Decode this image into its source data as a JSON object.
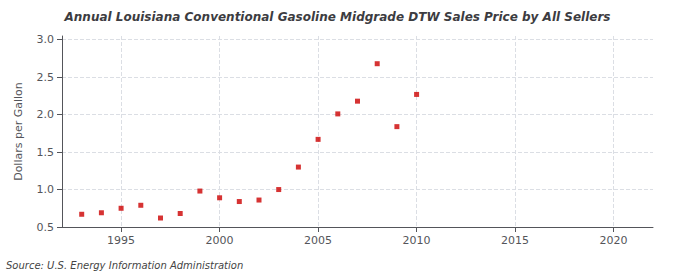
{
  "chart_data": {
    "type": "scatter",
    "title": "Annual Louisiana Conventional Gasoline Midgrade DTW Sales Price by All Sellers",
    "ylabel": "Dollars per Gallon",
    "source": "Source: U.S. Energy Information Administration",
    "x": [
      1993,
      1994,
      1995,
      1996,
      1997,
      1998,
      1999,
      2000,
      2001,
      2002,
      2003,
      2004,
      2005,
      2006,
      2007,
      2008,
      2009,
      2010
    ],
    "values": [
      0.67,
      0.69,
      0.75,
      0.79,
      0.62,
      0.68,
      0.98,
      0.89,
      0.84,
      0.86,
      1.0,
      1.3,
      1.67,
      2.01,
      2.18,
      2.68,
      1.84,
      2.27
    ],
    "color": "#cc0000",
    "marker": "square",
    "xlim": [
      1992,
      2022
    ],
    "xticks": [
      1995,
      2000,
      2005,
      2010,
      2015,
      2020
    ],
    "ylim": [
      0.5,
      3.05
    ],
    "yticks": [
      0.5,
      {
        "value": 1.0,
        "label": "1.0"
      },
      1.5,
      {
        "value": 2.0,
        "label": "2.0"
      },
      2.5,
      {
        "value": 3.0,
        "label": "3.0"
      }
    ],
    "grid": true
  }
}
